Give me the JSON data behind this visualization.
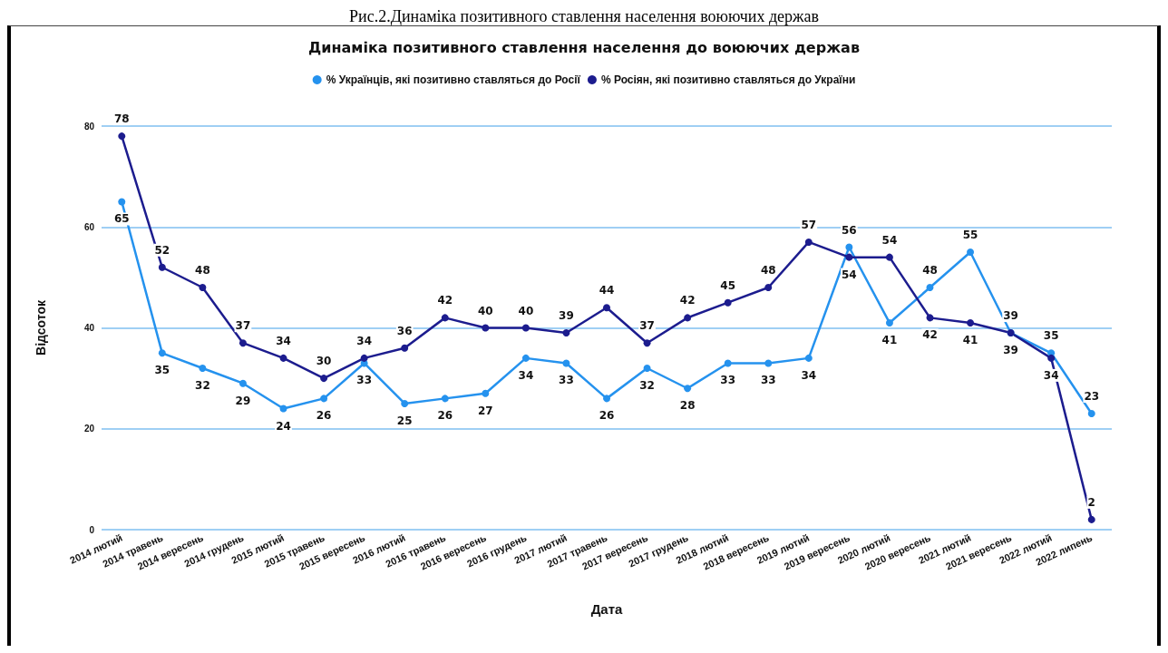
{
  "chart_data": {
    "type": "line",
    "title": "Динаміка позитивного ставлення населення до воюючих держав",
    "annotations": [
      "Рис.2.Динаміка позитивного ставлення населення воюючих держав"
    ],
    "xlabel": "Дата",
    "ylabel": "Відсоток",
    "categories": [
      "2014 лютий",
      "2014 травень",
      "2014 вересень",
      "2014 грудень",
      "2015 лютий",
      "2015 травень",
      "2015 вересень",
      "2016 лютий",
      "2016 травень",
      "2016 вересень",
      "2016 грудень",
      "2017 лютий",
      "2017 травень",
      "2017 вересень",
      "2017 грудень",
      "2018 лютий",
      "2018 вересень",
      "2019 лютий",
      "2019 вересень",
      "2020 лютий",
      "2020 вересень",
      "2021 лютий",
      "2021 вересень",
      "2022 лютий",
      "2022 липень"
    ],
    "series": [
      {
        "name": "% Українців, які позитивно ставляться до Росії",
        "color": "#2592ee",
        "values": [
          65,
          35,
          32,
          29,
          24,
          26,
          33,
          25,
          26,
          27,
          34,
          33,
          26,
          32,
          28,
          33,
          33,
          34,
          56,
          41,
          48,
          55,
          39,
          35,
          23
        ]
      },
      {
        "name": "% Росіян, які позитивно ставляться до України",
        "color": "#1c1c8e",
        "values": [
          78,
          52,
          48,
          37,
          34,
          30,
          34,
          36,
          42,
          40,
          40,
          39,
          44,
          37,
          42,
          45,
          48,
          57,
          54,
          54,
          42,
          41,
          39,
          34,
          2
        ]
      }
    ],
    "ylim": [
      0,
      80
    ],
    "yticks": [
      0,
      20,
      40,
      60,
      80
    ],
    "grid": "y",
    "legend": "top",
    "marker": "circle",
    "line_style": "solid",
    "data_labels": true
  }
}
